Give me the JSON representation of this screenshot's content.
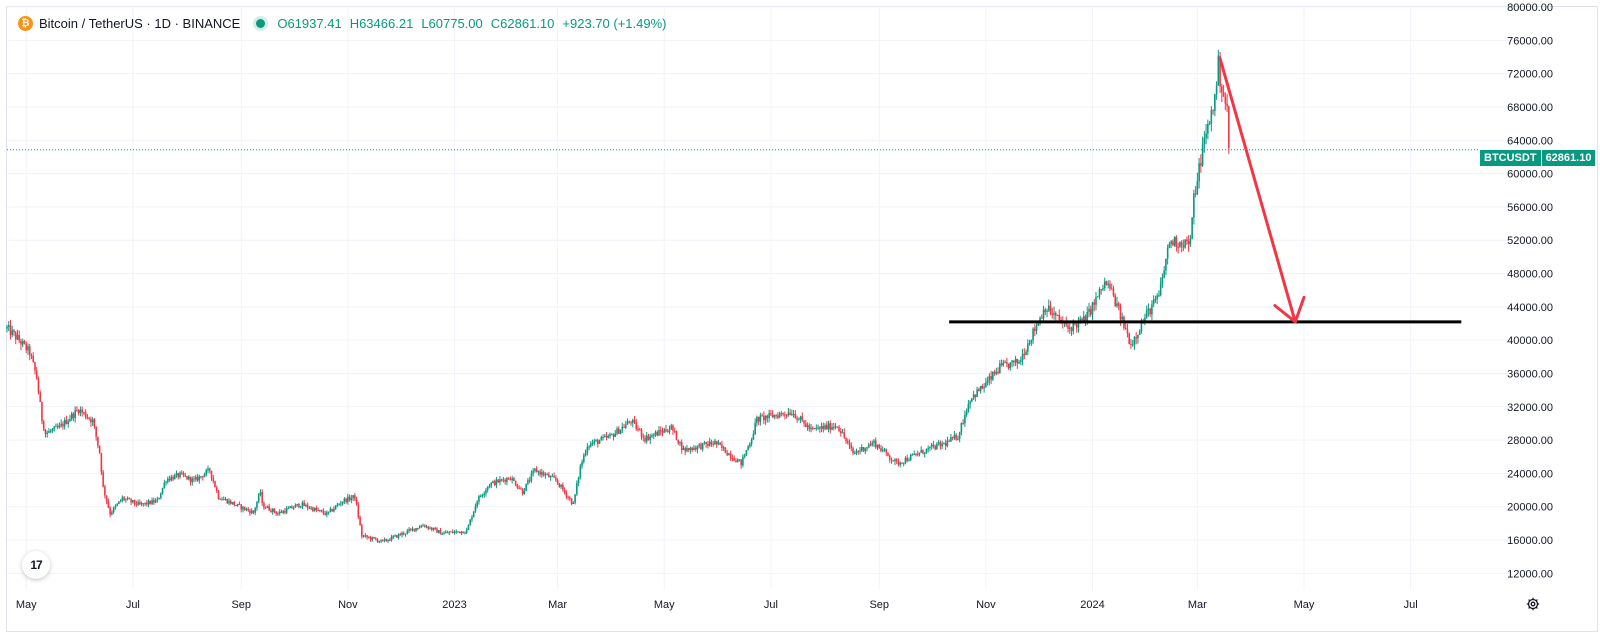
{
  "legend": {
    "title": "Bitcoin / TetherUS · 1D · BINANCE",
    "open_label": "O",
    "open": "61937.41",
    "high_label": "H",
    "high": "63466.21",
    "low_label": "L",
    "low": "60775.00",
    "close_label": "C",
    "close": "62861.10",
    "change": "+923.70 (+1.49%)"
  },
  "price_tag": {
    "symbol": "BTCUSDT",
    "value": "62861.10"
  },
  "logo_text": "17",
  "colors": {
    "up": "#089981",
    "down": "#f23645",
    "support_line": "#000000",
    "arrow": "#f23645",
    "last_price_line": "#089981"
  },
  "chart_data": {
    "type": "candlestick",
    "title": "Bitcoin / TetherUS · 1D · BINANCE",
    "y_ticks": [
      80000,
      76000,
      72000,
      68000,
      64000,
      60000,
      56000,
      52000,
      48000,
      44000,
      40000,
      36000,
      32000,
      28000,
      24000,
      20000,
      16000,
      12000
    ],
    "y_tick_labels": [
      "80000.00",
      "76000.00",
      "72000.00",
      "68000.00",
      "64000.00",
      "60000.00",
      "56000.00",
      "52000.00",
      "48000.00",
      "44000.00",
      "40000.00",
      "36000.00",
      "32000.00",
      "28000.00",
      "24000.00",
      "20000.00",
      "16000.00",
      "12000.00"
    ],
    "ylim": [
      10000,
      80000
    ],
    "x_ticks": [
      "2022-05-01",
      "2022-07-01",
      "2022-09-01",
      "2022-11-01",
      "2023-01-01",
      "2023-03-01",
      "2023-05-01",
      "2023-07-01",
      "2023-09-01",
      "2023-11-01",
      "2024-01-01",
      "2024-03-01",
      "2024-05-01",
      "2024-07-01"
    ],
    "x_tick_labels": [
      "May",
      "Jul",
      "Sep",
      "Nov",
      "2023",
      "Mar",
      "May",
      "Jul",
      "Sep",
      "Nov",
      "2024",
      "Mar",
      "May",
      "Jul"
    ],
    "xlim": [
      "2022-04-20",
      "2024-08-28"
    ],
    "grid": true,
    "last_price": 62861.1,
    "support_level": {
      "price": 42200,
      "from": "2023-10-11",
      "to": "2024-07-30"
    },
    "projection_arrow": {
      "from_date": "2024-03-14",
      "from_price": 73800,
      "to_date": "2024-04-26",
      "to_price": 42200
    },
    "price_path": [
      [
        "2022-04-20",
        41400
      ],
      [
        "2022-04-26",
        40200
      ],
      [
        "2022-05-03",
        38500
      ],
      [
        "2022-05-07",
        35500
      ],
      [
        "2022-05-10",
        30500
      ],
      [
        "2022-05-12",
        28800
      ],
      [
        "2022-05-20",
        29500
      ],
      [
        "2022-05-31",
        31700
      ],
      [
        "2022-06-08",
        30300
      ],
      [
        "2022-06-12",
        26500
      ],
      [
        "2022-06-14",
        22300
      ],
      [
        "2022-06-18",
        19200
      ],
      [
        "2022-06-25",
        21000
      ],
      [
        "2022-07-05",
        20200
      ],
      [
        "2022-07-15",
        20700
      ],
      [
        "2022-07-20",
        23300
      ],
      [
        "2022-07-28",
        23800
      ],
      [
        "2022-08-05",
        23100
      ],
      [
        "2022-08-14",
        24400
      ],
      [
        "2022-08-19",
        21200
      ],
      [
        "2022-08-31",
        20000
      ],
      [
        "2022-09-08",
        19300
      ],
      [
        "2022-09-12",
        21800
      ],
      [
        "2022-09-13",
        20200
      ],
      [
        "2022-09-22",
        19200
      ],
      [
        "2022-10-05",
        20300
      ],
      [
        "2022-10-20",
        19100
      ],
      [
        "2022-10-29",
        20700
      ],
      [
        "2022-11-05",
        21200
      ],
      [
        "2022-11-09",
        16500
      ],
      [
        "2022-11-21",
        15800
      ],
      [
        "2022-12-05",
        17000
      ],
      [
        "2022-12-14",
        17800
      ],
      [
        "2022-12-25",
        16800
      ],
      [
        "2023-01-08",
        17100
      ],
      [
        "2023-01-14",
        20800
      ],
      [
        "2023-01-21",
        22700
      ],
      [
        "2023-02-02",
        23500
      ],
      [
        "2023-02-09",
        21800
      ],
      [
        "2023-02-16",
        24400
      ],
      [
        "2023-02-28",
        23200
      ],
      [
        "2023-03-10",
        20300
      ],
      [
        "2023-03-14",
        24800
      ],
      [
        "2023-03-18",
        27400
      ],
      [
        "2023-03-31",
        28400
      ],
      [
        "2023-04-12",
        30300
      ],
      [
        "2023-04-20",
        28200
      ],
      [
        "2023-05-05",
        29500
      ],
      [
        "2023-05-12",
        26800
      ],
      [
        "2023-05-30",
        27700
      ],
      [
        "2023-06-14",
        25200
      ],
      [
        "2023-06-20",
        28300
      ],
      [
        "2023-06-23",
        30500
      ],
      [
        "2023-07-13",
        31400
      ],
      [
        "2023-07-24",
        29200
      ],
      [
        "2023-08-08",
        29800
      ],
      [
        "2023-08-17",
        26400
      ],
      [
        "2023-08-29",
        27700
      ],
      [
        "2023-09-11",
        25200
      ],
      [
        "2023-09-30",
        27000
      ],
      [
        "2023-10-09",
        27600
      ],
      [
        "2023-10-16",
        28500
      ],
      [
        "2023-10-23",
        33000
      ],
      [
        "2023-10-31",
        34500
      ],
      [
        "2023-11-09",
        36700
      ],
      [
        "2023-11-20",
        37400
      ],
      [
        "2023-12-05",
        44000
      ],
      [
        "2023-12-18",
        41400
      ],
      [
        "2023-12-28",
        42500
      ],
      [
        "2024-01-08",
        46800
      ],
      [
        "2024-01-11",
        46300
      ],
      [
        "2024-01-23",
        39500
      ],
      [
        "2024-02-01",
        43100
      ],
      [
        "2024-02-08",
        45300
      ],
      [
        "2024-02-14",
        51800
      ],
      [
        "2024-02-26",
        51700
      ],
      [
        "2024-02-28",
        57000
      ],
      [
        "2024-03-04",
        63000
      ],
      [
        "2024-03-11",
        69000
      ],
      [
        "2024-03-13",
        73100
      ],
      [
        "2024-03-14",
        71400
      ],
      [
        "2024-03-18",
        67500
      ],
      [
        "2024-03-19",
        62861
      ]
    ]
  }
}
